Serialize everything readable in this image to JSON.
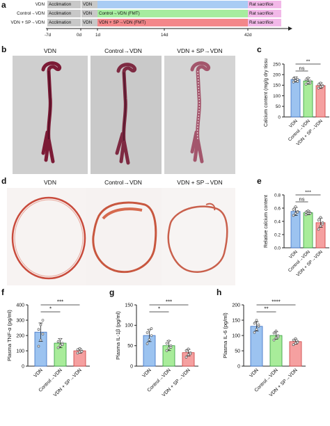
{
  "panel_letters": {
    "a": "a",
    "b": "b",
    "c": "c",
    "d": "d",
    "e": "e",
    "f": "f",
    "g": "g",
    "h": "h"
  },
  "timeline": {
    "rows": [
      {
        "label": "VDN",
        "segments": [
          "Acclimation",
          "VDN",
          "",
          "Rat sacrifice"
        ]
      },
      {
        "label": "Control→VDN",
        "segments": [
          "Acclimation",
          "VDN",
          "Control→VDN (FMT)",
          "Rat sacrifice"
        ]
      },
      {
        "label": "VDN + SP→VDN",
        "segments": [
          "Acclimation",
          "VDN",
          "VDN + SP→VDN (FMT)",
          "Rat sacrifice"
        ]
      }
    ],
    "ticks": [
      "-7d",
      "0d",
      "1d",
      "14d",
      "42d"
    ],
    "colors": {
      "acclimation": "#c8c8c8",
      "vdn": "#c8c8c8",
      "row1": "#a9ccf4",
      "row2": "#a6ec9f",
      "row3": "#f3878a",
      "sacrifice": "#f2b8e8"
    }
  },
  "panel_b": {
    "titles": [
      "VDN",
      "Control→VDN",
      "VDN + SP→VDN"
    ]
  },
  "panel_d": {
    "titles": [
      "VDN",
      "Control→VDN",
      "VDN + SP→VDN"
    ]
  },
  "chart_data": [
    {
      "id": "c",
      "type": "bar",
      "categories": [
        "VDN",
        "Control→VDN",
        "VDN + SP→VDN"
      ],
      "values": [
        177,
        170,
        148
      ],
      "errors": [
        12,
        15,
        13
      ],
      "points": [
        [
          165,
          172,
          178,
          181,
          185,
          168
        ],
        [
          155,
          162,
          170,
          176,
          184,
          160
        ],
        [
          136,
          142,
          148,
          153,
          160,
          145
        ]
      ],
      "ylabel": "Calcium content (mg/g dry tissue)",
      "ylim": [
        0,
        250
      ],
      "yticks": [
        0,
        50,
        100,
        150,
        200,
        250
      ],
      "significance": [
        {
          "from": 0,
          "to": 2,
          "label": "**",
          "level": 1
        },
        {
          "from": 0,
          "to": 1,
          "label": "ns",
          "level": 0
        }
      ]
    },
    {
      "id": "e",
      "type": "bar",
      "categories": [
        "VDN",
        "Control→VDN",
        "VDN + SP→VDN"
      ],
      "values": [
        0.55,
        0.53,
        0.38
      ],
      "errors": [
        0.06,
        0.03,
        0.07
      ],
      "points": [
        [
          0.49,
          0.52,
          0.55,
          0.58,
          0.62,
          0.54
        ],
        [
          0.5,
          0.52,
          0.53,
          0.54,
          0.56,
          0.52
        ],
        [
          0.28,
          0.33,
          0.38,
          0.42,
          0.46,
          0.36
        ]
      ],
      "ylabel": "Relative calcium content",
      "ylim": [
        0,
        0.8
      ],
      "yticks": [
        0.0,
        0.2,
        0.4,
        0.6,
        0.8
      ],
      "significance": [
        {
          "from": 0,
          "to": 2,
          "label": "***",
          "level": 1
        },
        {
          "from": 0,
          "to": 1,
          "label": "ns",
          "level": 0
        }
      ]
    },
    {
      "id": "f",
      "type": "bar",
      "categories": [
        "VDN",
        "Control→VDN",
        "VDN + SP→VDN"
      ],
      "values": [
        222,
        150,
        100
      ],
      "errors": [
        60,
        30,
        15
      ],
      "points": [
        [
          130,
          170,
          210,
          240,
          270,
          300
        ],
        [
          120,
          135,
          150,
          160,
          175,
          140
        ],
        [
          85,
          92,
          100,
          108,
          115,
          95
        ]
      ],
      "ylabel": "Plasma TNF-α (pg/ml)",
      "ylim": [
        0,
        400
      ],
      "yticks": [
        0,
        100,
        200,
        300,
        400
      ],
      "significance": [
        {
          "from": 0,
          "to": 2,
          "label": "***",
          "level": 1
        },
        {
          "from": 0,
          "to": 1,
          "label": "*",
          "level": 0
        }
      ]
    },
    {
      "id": "g",
      "type": "bar",
      "categories": [
        "VDN",
        "Control→VDN",
        "VDN + SP→VDN"
      ],
      "values": [
        75,
        50,
        33
      ],
      "errors": [
        15,
        12,
        8
      ],
      "points": [
        [
          55,
          65,
          75,
          82,
          88,
          92
        ],
        [
          38,
          44,
          50,
          56,
          62,
          46
        ],
        [
          22,
          28,
          33,
          38,
          42,
          30
        ]
      ],
      "ylabel": "Plasma IL-1β (pg/ml)",
      "ylim": [
        0,
        150
      ],
      "yticks": [
        0,
        50,
        100,
        150
      ],
      "significance": [
        {
          "from": 0,
          "to": 2,
          "label": "***",
          "level": 1
        },
        {
          "from": 0,
          "to": 1,
          "label": "*",
          "level": 0
        }
      ]
    },
    {
      "id": "h",
      "type": "bar",
      "categories": [
        "VDN",
        "Control→VDN",
        "VDN + SP→VDN"
      ],
      "values": [
        130,
        100,
        80
      ],
      "errors": [
        15,
        12,
        8
      ],
      "points": [
        [
          110,
          120,
          130,
          140,
          150,
          135
        ],
        [
          85,
          92,
          100,
          108,
          115,
          95
        ],
        [
          70,
          75,
          80,
          85,
          90,
          78
        ]
      ],
      "ylabel": "Plasma IL-6 (pg/ml)",
      "ylim": [
        0,
        200
      ],
      "yticks": [
        0,
        50,
        100,
        150,
        200
      ],
      "significance": [
        {
          "from": 0,
          "to": 2,
          "label": "****",
          "level": 1
        },
        {
          "from": 0,
          "to": 1,
          "label": "**",
          "level": 0
        }
      ]
    }
  ],
  "bar_colors": {
    "fill": [
      "#9cc3f0",
      "#a8ec9a",
      "#f5a0a0"
    ],
    "stroke": [
      "#3a6fc4",
      "#2f9a3a",
      "#cc3d3d"
    ]
  }
}
